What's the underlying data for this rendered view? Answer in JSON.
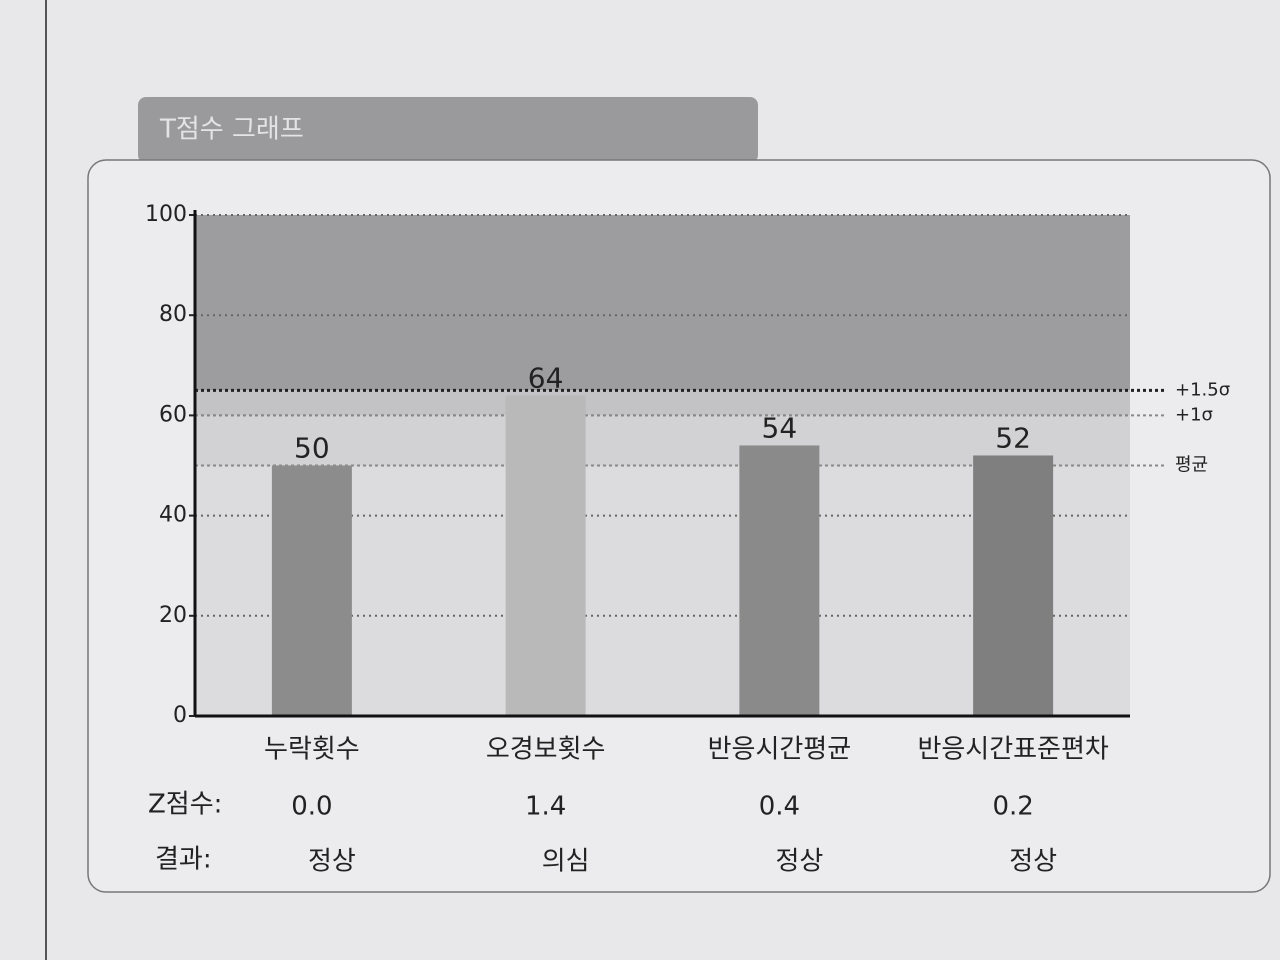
{
  "chart_data": {
    "type": "bar",
    "title": "T점수 그래프",
    "categories": [
      "누락횟수",
      "오경보횟수",
      "반응시간평균",
      "반응시간표준편차"
    ],
    "values": [
      50,
      64,
      54,
      52
    ],
    "colors": [
      "#8c8c8c",
      "#b9b9b9",
      "#8a8a8a",
      "#7f7f7f"
    ],
    "ylim": [
      0,
      100
    ],
    "yticks": [
      0,
      20,
      40,
      60,
      80,
      100
    ],
    "grid": true,
    "reference_lines": [
      {
        "value": 65,
        "label": "+1.5σ"
      },
      {
        "value": 60,
        "label": "+1σ"
      },
      {
        "value": 50,
        "label": "평균"
      }
    ],
    "z_label": "Z점수:",
    "z_scores": [
      "0.0",
      "1.4",
      "0.4",
      "0.2"
    ],
    "result_label": "결과:",
    "results": [
      "정상",
      "의심",
      "정상",
      "정상"
    ]
  }
}
